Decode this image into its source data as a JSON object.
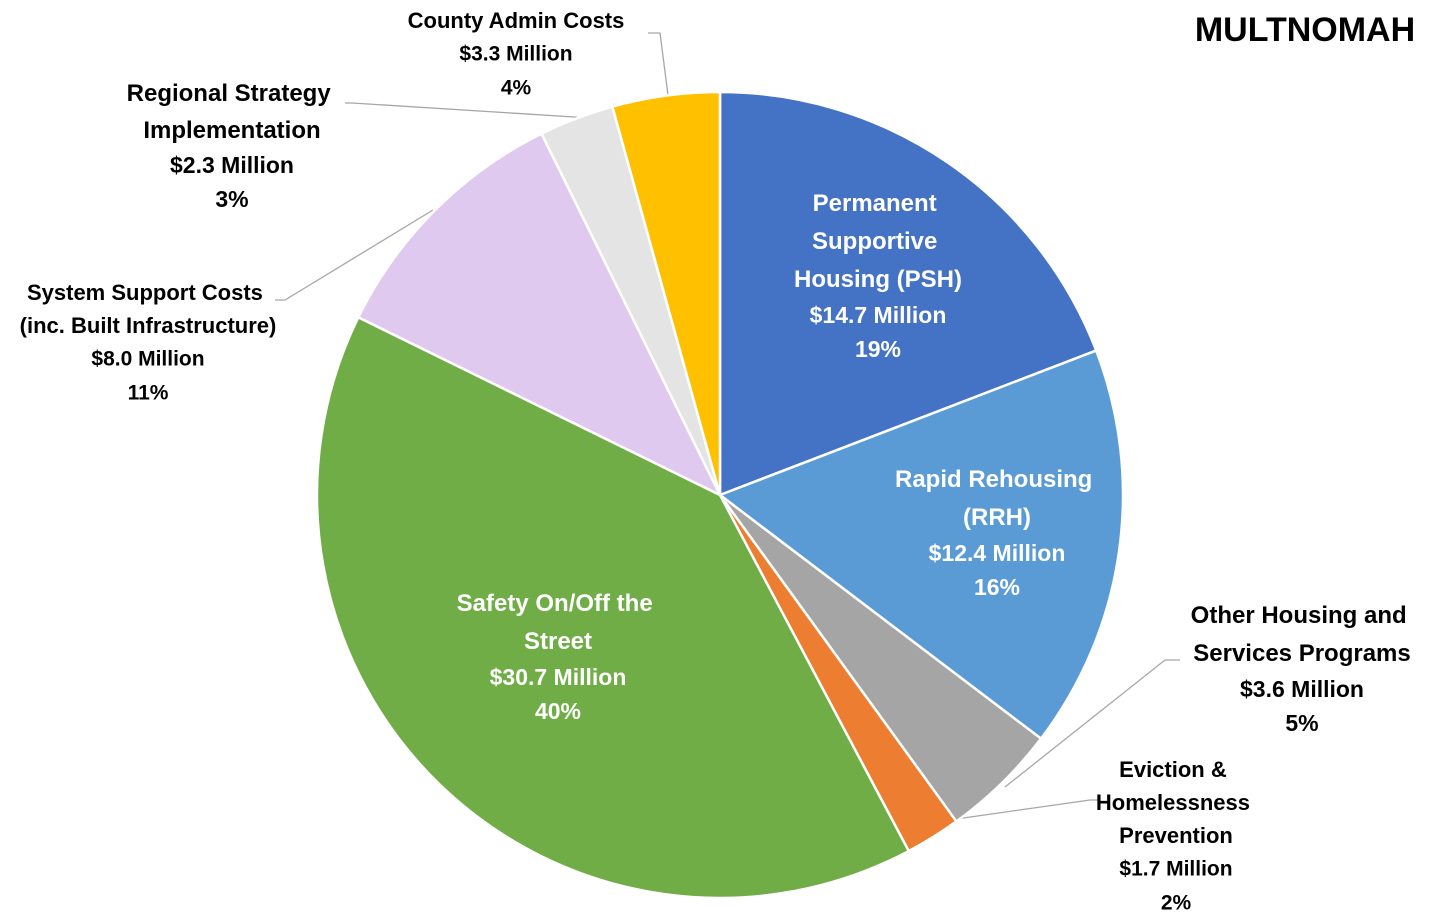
{
  "chart_data": {
    "type": "pie",
    "title": "MULTNOMAH",
    "categories": [
      "Permanent Supportive Housing (PSH)",
      "Rapid Rehousing (RRH)",
      "Other Housing and Services Programs",
      "Eviction & Homelessness Prevention",
      "Safety On/Off the Street",
      "System Support Costs (inc. Built Infrastructure)",
      "Regional Strategy Implementation",
      "County Admin Costs"
    ],
    "values": [
      14.7,
      12.4,
      3.6,
      1.7,
      30.7,
      8.0,
      2.3,
      3.3
    ],
    "value_labels": [
      "$14.7 Million",
      "$12.4 Million",
      "$3.6 Million",
      "$1.7 Million",
      "$30.7 Million",
      "$8.0 Million",
      "$2.3 Million",
      "$3.3 Million"
    ],
    "percent_labels": [
      "19%",
      "16%",
      "5%",
      "2%",
      "40%",
      "11%",
      "3%",
      "4%"
    ],
    "colors": [
      "#4472c4",
      "#5b9bd5",
      "#a5a5a5",
      "#ed7d31",
      "#70ad47",
      "#dfc9ee",
      "#e4e4e4",
      "#ffc000"
    ]
  }
}
